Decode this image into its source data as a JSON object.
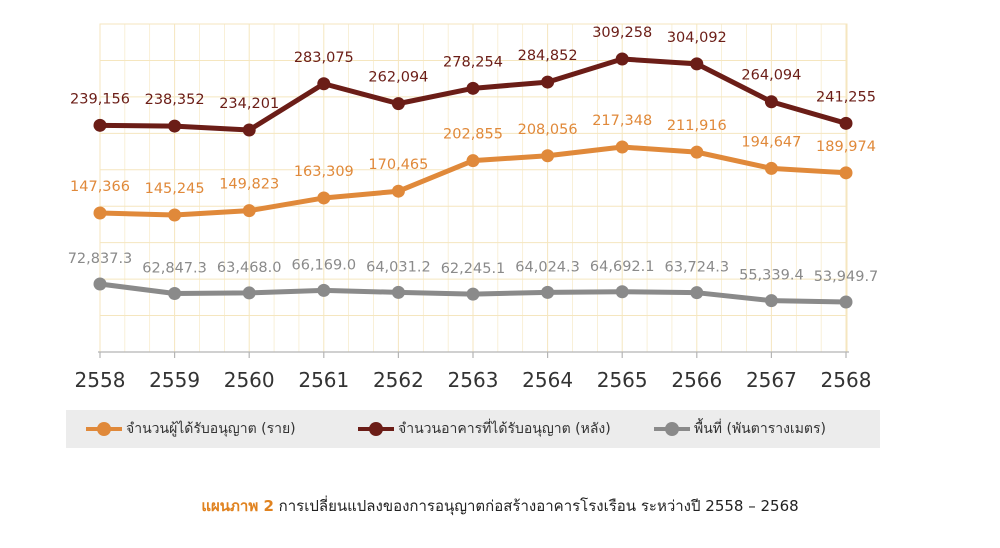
{
  "chart_data": {
    "type": "line",
    "categories": [
      "2558",
      "2559",
      "2560",
      "2561",
      "2562",
      "2563",
      "2564",
      "2565",
      "2566",
      "2567",
      "2568"
    ],
    "series": [
      {
        "name": "จำนวนอาคารที่ได้รับอนุญาต (หลัง)",
        "color": "#6b1d17",
        "values": [
          239156,
          238352,
          234201,
          283075,
          262094,
          278254,
          284852,
          309258,
          304092,
          264094,
          241255
        ],
        "labels": [
          "239,156",
          "238,352",
          "234,201",
          "283,075",
          "262,094",
          "278,254",
          "284,852",
          "309,258",
          "304,092",
          "264,094",
          "241,255"
        ]
      },
      {
        "name": "จำนวนผู้ได้รับอนุญาต (ราย)",
        "color": "#e0893a",
        "values": [
          147366,
          145245,
          149823,
          163309,
          170465,
          202855,
          208056,
          217348,
          211916,
          194647,
          189974
        ],
        "labels": [
          "147,366",
          "145,245",
          "149,823",
          "163,309",
          "170,465",
          "202,855",
          "208,056",
          "217,348",
          "211,916",
          "194,647",
          "189,974"
        ]
      },
      {
        "name": "พื้นที่ (พันตารางเมตร)",
        "color": "#8a8a8a",
        "values": [
          72837.3,
          62847.3,
          63468.0,
          66169.0,
          64031.2,
          62245.1,
          64024.3,
          64692.1,
          63724.3,
          55339.4,
          53949.7
        ],
        "labels": [
          "72,837.3",
          "62,847.3",
          "63,468.0",
          "66,169.0",
          "64,031.2",
          "62,245.1",
          "64,024.3",
          "64,692.1",
          "63,724.3",
          "55,339.4",
          "53,949.7"
        ]
      }
    ],
    "grid": true,
    "grid_color": "#f5e6bf",
    "legend_position": "bottom",
    "legend_order": [
      1,
      0,
      2
    ]
  },
  "caption": {
    "figure_label": "แผนภาพ 2",
    "text": "การเปลี่ยนแปลงของการอนุญาตก่อสร้างอาคารโรงเรือน ระหว่างปี 2558 – 2568"
  }
}
